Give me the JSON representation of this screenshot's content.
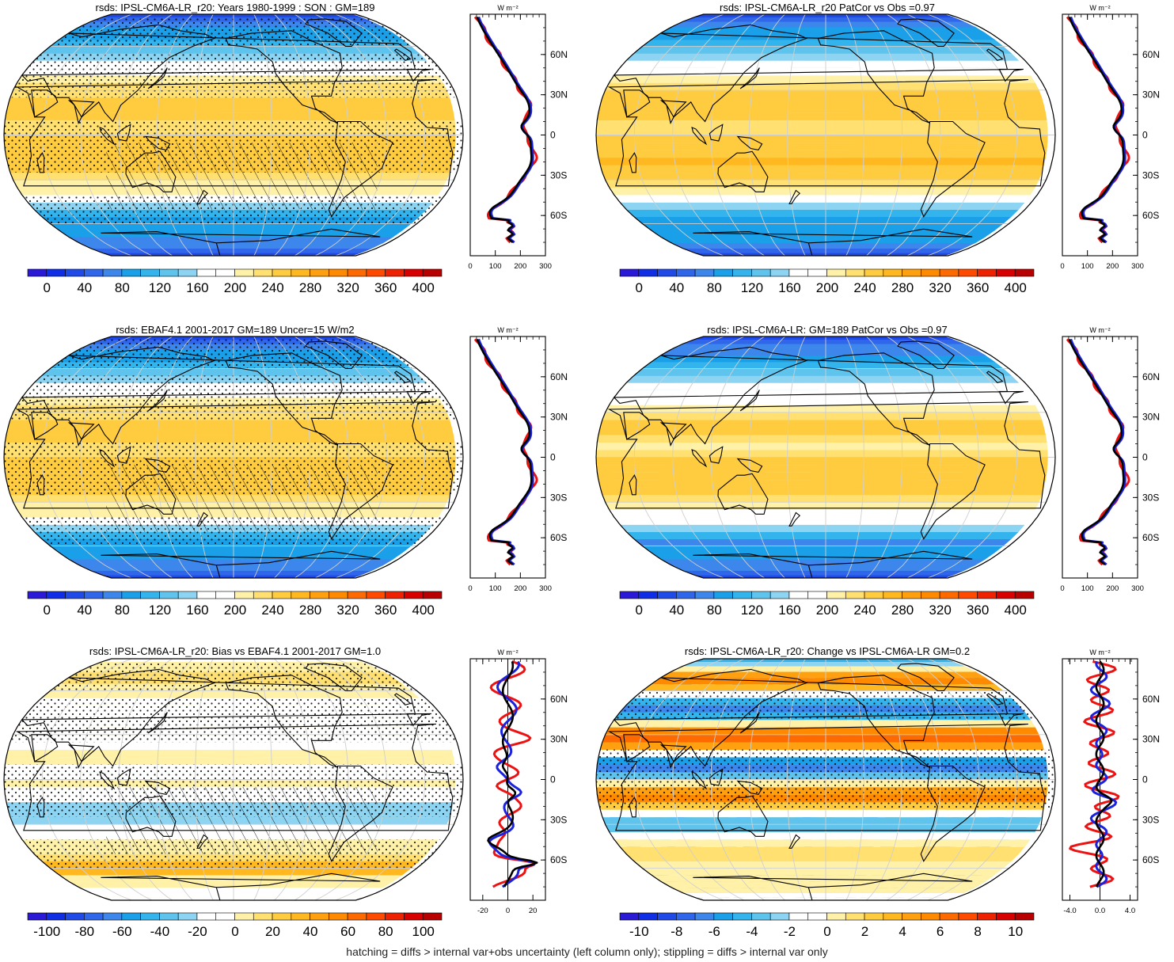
{
  "caption": "hatching = diffs > internal var+obs uncertainty (left column only); stippling = diffs > internal var only",
  "units_label": "W m⁻²",
  "lat_ticks": [
    "60N",
    "30N",
    "0",
    "30S",
    "60S"
  ],
  "lat_values": [
    60,
    30,
    0,
    -30,
    -60
  ],
  "colors": {
    "line_red": "#ee1111",
    "line_blue": "#1a22dd",
    "line_black": "#000000",
    "land_outline": "#000000"
  },
  "scales": {
    "abs": {
      "labels": [
        "0",
        "40",
        "80",
        "120",
        "160",
        "200",
        "240",
        "280",
        "320",
        "360",
        "400"
      ],
      "colors": [
        "#2a1ad8",
        "#0f2ee6",
        "#1f4ae8",
        "#2f66ea",
        "#3d86ec",
        "#1aa0e8",
        "#34b4ec",
        "#5ec4ee",
        "#8cd4f2",
        "#ffffff",
        "#ffffff",
        "#fff2a8",
        "#ffe070",
        "#ffcc40",
        "#ffb820",
        "#ffa010",
        "#ff8a00",
        "#ff6a00",
        "#ff4a00",
        "#ee2200",
        "#d80000",
        "#b80000"
      ]
    },
    "diff100": {
      "labels": [
        "-100",
        "-80",
        "-60",
        "-40",
        "-20",
        "0",
        "20",
        "40",
        "60",
        "80",
        "100"
      ],
      "colors": [
        "#2a1ad8",
        "#0f2ee6",
        "#1f4ae8",
        "#2f66ea",
        "#3d86ec",
        "#1aa0e8",
        "#34b4ec",
        "#5ec4ee",
        "#8cd4f2",
        "#ffffff",
        "#ffffff",
        "#fff2a8",
        "#ffe070",
        "#ffcc40",
        "#ffb820",
        "#ffa010",
        "#ff8a00",
        "#ff6a00",
        "#ff4a00",
        "#ee2200",
        "#d80000",
        "#b80000"
      ]
    },
    "diff10": {
      "labels": [
        "-10",
        "-8",
        "-6",
        "-4",
        "-2",
        "0",
        "2",
        "4",
        "6",
        "8",
        "10"
      ],
      "colors": [
        "#2a1ad8",
        "#0f2ee6",
        "#1f4ae8",
        "#2f66ea",
        "#3d86ec",
        "#1aa0e8",
        "#34b4ec",
        "#5ec4ee",
        "#8cd4f2",
        "#ffffff",
        "#ffffff",
        "#fff2a8",
        "#ffe070",
        "#ffcc40",
        "#ffb820",
        "#ffa010",
        "#ff8a00",
        "#ff6a00",
        "#ff4a00",
        "#ee2200",
        "#d80000",
        "#b80000"
      ]
    }
  },
  "chart_data": [
    {
      "type": "heatmap",
      "id": "p1",
      "title": "rsds: IPSL-CM6A-LR_r20: Years 1980-1999 : SON : GM=189",
      "scale": "abs",
      "field": "abs",
      "mode": "sim",
      "profile": {
        "xlim": [
          0,
          300
        ],
        "xticks": [
          0,
          100,
          200,
          300
        ],
        "xlabels": [
          "0",
          "100",
          "200",
          "300"
        ],
        "zero_line": false,
        "kind": "abs"
      }
    },
    {
      "type": "heatmap",
      "id": "p2",
      "title": "rsds: IPSL-CM6A-LR_r20 PatCor vs Obs =0.97",
      "scale": "abs",
      "field": "abs",
      "mode": "patcor",
      "profile": {
        "xlim": [
          0,
          300
        ],
        "xticks": [
          0,
          100,
          200,
          300
        ],
        "xlabels": [
          "0",
          "100",
          "200",
          "300"
        ],
        "zero_line": false,
        "kind": "abs"
      }
    },
    {
      "type": "heatmap",
      "id": "p3",
      "title": "rsds: EBAF4.1 2001-2017 GM=189 Uncer=15 W/m2",
      "scale": "abs",
      "field": "abs",
      "mode": "obs",
      "profile": {
        "xlim": [
          0,
          300
        ],
        "xticks": [
          0,
          100,
          200,
          300
        ],
        "xlabels": [
          "0",
          "100",
          "200",
          "300"
        ],
        "zero_line": false,
        "kind": "abs"
      }
    },
    {
      "type": "heatmap",
      "id": "p4",
      "title": "rsds: IPSL-CM6A-LR: GM=189 PatCor vs Obs =0.97",
      "scale": "abs",
      "field": "abs",
      "mode": "patcor",
      "profile": {
        "xlim": [
          0,
          300
        ],
        "xticks": [
          0,
          100,
          200,
          300
        ],
        "xlabels": [
          "0",
          "100",
          "200",
          "300"
        ],
        "zero_line": false,
        "kind": "abs"
      }
    },
    {
      "type": "heatmap",
      "id": "p5",
      "title": "rsds: IPSL-CM6A-LR_r20: Bias vs EBAF4.1 2001-2017  GM=1.0",
      "scale": "diff100",
      "field": "bias",
      "mode": "bias",
      "profile": {
        "xlim": [
          -30,
          30
        ],
        "xticks": [
          -20,
          0,
          20
        ],
        "xlabels": [
          "-20",
          "0",
          "20"
        ],
        "zero_line": true,
        "kind": "bias"
      }
    },
    {
      "type": "heatmap",
      "id": "p6",
      "title": "rsds: IPSL-CM6A-LR_r20: Change vs IPSL-CM6A-LR GM=0.2",
      "scale": "diff10",
      "field": "change",
      "mode": "change",
      "profile": {
        "xlim": [
          -5,
          5
        ],
        "xticks": [
          -4,
          0,
          4
        ],
        "xlabels": [
          "-4.0",
          "0.0",
          "4.0"
        ],
        "zero_line": true,
        "kind": "change"
      }
    }
  ]
}
